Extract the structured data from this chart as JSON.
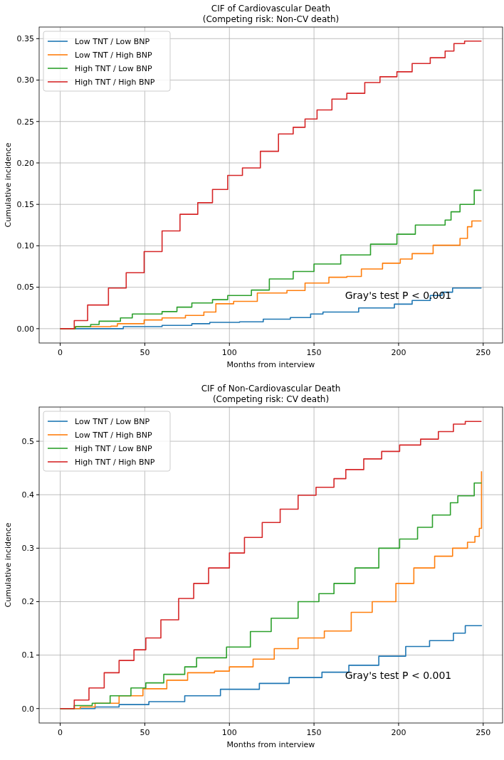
{
  "chart_data": [
    {
      "type": "step",
      "title": "CIF of Cardiovascular Death\n(Competing risk: Non-CV death)",
      "xlabel": "Months from interview",
      "ylabel": "Cumulative incidence",
      "xlim": [
        -12.45,
        261.45
      ],
      "ylim": [
        -0.0173,
        0.364
      ],
      "xticks": [
        0,
        50,
        100,
        150,
        200,
        250
      ],
      "yticks": [
        {
          "value": 0,
          "label": "0.00"
        },
        {
          "value": 0.05,
          "label": "0.05"
        },
        {
          "value": 0.1,
          "label": "0.10"
        },
        {
          "value": 0.15,
          "label": "0.15"
        },
        {
          "value": 0.2,
          "label": "0.20"
        },
        {
          "value": 0.25,
          "label": "0.25"
        },
        {
          "value": 0.3,
          "label": "0.30"
        },
        {
          "value": 0.35,
          "label": "0.35"
        }
      ],
      "grid": true,
      "legend": "top left",
      "annotations": [
        "Gray's test P < 0.001"
      ],
      "series": [
        {
          "name": "Low TNT / Low BNP",
          "color": "#1f77b4",
          "x": [
            0,
            30.3,
            37.3,
            60.2,
            77.8,
            88.4,
            106,
            120,
            136,
            148,
            155.3,
            176.4,
            197.5,
            208,
            218.7,
            225.7,
            231.9,
            249
          ],
          "values": [
            0,
            0,
            0.0025,
            0.004,
            0.006,
            0.0076,
            0.0083,
            0.0115,
            0.0134,
            0.0177,
            0.02,
            0.025,
            0.0296,
            0.034,
            0.04,
            0.044,
            0.049,
            0.049
          ]
        },
        {
          "name": "Low TNT / High BNP",
          "color": "#ff7f0e",
          "x": [
            0,
            9,
            30,
            33.8,
            49.6,
            60.2,
            74,
            84.9,
            92,
            102.5,
            116.5,
            134,
            144.7,
            158.8,
            169.4,
            178,
            190.5,
            201,
            208,
            220.4,
            236.3,
            240.7,
            243.3,
            249
          ],
          "values": [
            0,
            0.0025,
            0.003,
            0.006,
            0.0105,
            0.013,
            0.016,
            0.02,
            0.03,
            0.033,
            0.043,
            0.046,
            0.055,
            0.062,
            0.063,
            0.072,
            0.079,
            0.084,
            0.0906,
            0.1007,
            0.109,
            0.123,
            0.13,
            0.13
          ]
        },
        {
          "name": "High TNT / Low BNP",
          "color": "#2ca02c",
          "x": [
            0,
            9,
            18,
            23,
            35.6,
            42.6,
            60.2,
            69,
            77.8,
            90,
            99,
            113,
            123.6,
            137.7,
            150,
            165.8,
            183.4,
            199,
            209.9,
            227.5,
            231,
            236.3,
            244.7,
            249
          ],
          "values": [
            0,
            0.0025,
            0.005,
            0.009,
            0.013,
            0.0177,
            0.0206,
            0.026,
            0.031,
            0.035,
            0.04,
            0.0466,
            0.06,
            0.069,
            0.078,
            0.089,
            0.102,
            0.114,
            0.125,
            0.131,
            0.141,
            0.15,
            0.167,
            0.167
          ]
        },
        {
          "name": "High TNT / High BNP",
          "color": "#d62728",
          "x": [
            0,
            8.3,
            16.2,
            28.5,
            39,
            49.6,
            60.2,
            70.8,
            81.3,
            90,
            99,
            107.7,
            118.3,
            129,
            137.7,
            144.7,
            151.8,
            160.6,
            169.4,
            180,
            189,
            199,
            208,
            218.7,
            227.5,
            232.7,
            239,
            249
          ],
          "values": [
            0,
            0.0097,
            0.0285,
            0.049,
            0.0675,
            0.093,
            0.118,
            0.138,
            0.152,
            0.168,
            0.185,
            0.194,
            0.214,
            0.235,
            0.243,
            0.253,
            0.264,
            0.277,
            0.284,
            0.297,
            0.304,
            0.31,
            0.32,
            0.327,
            0.335,
            0.344,
            0.347,
            0.347
          ]
        }
      ]
    },
    {
      "type": "step",
      "title": "CIF of Non-Cardiovascular Death\n(Competing risk: CV death)",
      "xlabel": "Months from interview",
      "ylabel": "Cumulative incidence",
      "xlim": [
        -12.45,
        261.45
      ],
      "ylim": [
        -0.027,
        0.564
      ],
      "xticks": [
        0,
        50,
        100,
        150,
        200,
        250
      ],
      "yticks": [
        {
          "value": 0,
          "label": "0.0"
        },
        {
          "value": 0.1,
          "label": "0.1"
        },
        {
          "value": 0.2,
          "label": "0.2"
        },
        {
          "value": 0.3,
          "label": "0.3"
        },
        {
          "value": 0.4,
          "label": "0.4"
        },
        {
          "value": 0.5,
          "label": "0.5"
        }
      ],
      "grid": true,
      "legend": "top left",
      "annotations": [
        "Gray's test P < 0.001"
      ],
      "series": [
        {
          "name": "Low TNT / Low BNP",
          "color": "#1f77b4",
          "x": [
            0,
            20.6,
            34.8,
            52.4,
            73.6,
            94.7,
            117.7,
            135.3,
            154.7,
            170.6,
            188.3,
            204.2,
            218.3,
            232.4,
            239.4,
            249
          ],
          "values": [
            0,
            0.003,
            0.0074,
            0.013,
            0.024,
            0.036,
            0.047,
            0.058,
            0.068,
            0.081,
            0.098,
            0.116,
            0.127,
            0.141,
            0.155,
            0.156
          ]
        },
        {
          "name": "Low TNT / High BNP",
          "color": "#ff7f0e",
          "x": [
            0,
            11.8,
            20.6,
            34.8,
            48.9,
            63,
            75.3,
            91.2,
            100,
            114,
            126.5,
            140.6,
            156.1,
            172,
            184.4,
            198.4,
            209,
            221.3,
            231.9,
            240.7,
            245.1,
            247.7,
            249
          ],
          "values": [
            0,
            0.003,
            0.01,
            0.024,
            0.037,
            0.053,
            0.067,
            0.07,
            0.078,
            0.0925,
            0.112,
            0.132,
            0.145,
            0.18,
            0.2,
            0.234,
            0.263,
            0.285,
            0.3,
            0.311,
            0.322,
            0.337,
            0.444
          ]
        },
        {
          "name": "High TNT / Low BNP",
          "color": "#2ca02c",
          "x": [
            0,
            8.3,
            18.9,
            29.5,
            41.8,
            50.6,
            61.2,
            73.6,
            80.6,
            98.3,
            112.4,
            124.7,
            140.6,
            152.9,
            161.8,
            174.2,
            188.3,
            200.6,
            211.2,
            220,
            230.6,
            235,
            244.7,
            249
          ],
          "values": [
            0,
            0.0057,
            0.01,
            0.024,
            0.0386,
            0.048,
            0.064,
            0.078,
            0.095,
            0.115,
            0.144,
            0.169,
            0.2,
            0.215,
            0.234,
            0.263,
            0.3,
            0.317,
            0.339,
            0.362,
            0.385,
            0.398,
            0.422,
            0.422
          ]
        },
        {
          "name": "High TNT / High BNP",
          "color": "#d62728",
          "x": [
            0,
            8.3,
            17,
            26,
            34.8,
            43.6,
            50.6,
            59.5,
            70,
            78.9,
            87.7,
            100,
            108.9,
            119.4,
            130,
            140.6,
            151.2,
            161.8,
            168.8,
            179.4,
            190,
            200.6,
            213,
            223.5,
            232.4,
            239.4,
            249
          ],
          "values": [
            0,
            0.016,
            0.0386,
            0.067,
            0.09,
            0.11,
            0.132,
            0.166,
            0.206,
            0.234,
            0.263,
            0.291,
            0.32,
            0.348,
            0.373,
            0.399,
            0.414,
            0.43,
            0.447,
            0.467,
            0.481,
            0.493,
            0.504,
            0.518,
            0.532,
            0.537,
            0.537
          ]
        }
      ]
    }
  ]
}
